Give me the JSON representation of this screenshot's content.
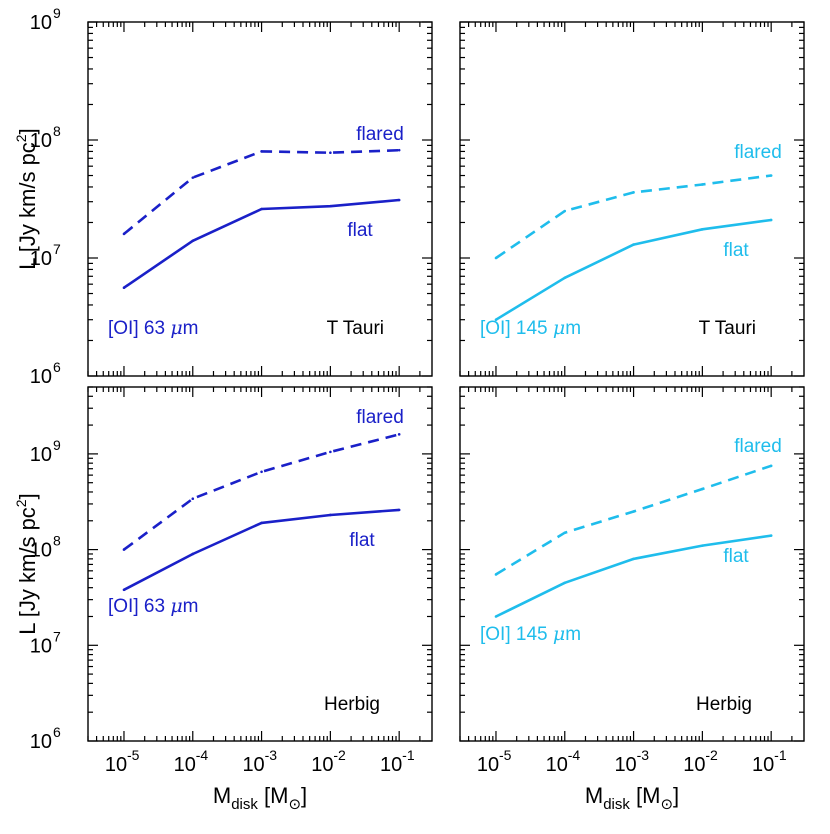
{
  "chart_data": [
    {
      "type": "line",
      "position": "top-left",
      "line": "[OI] 63 μm",
      "object": "T Tauri",
      "color": "#1a20c8",
      "xscale": "log",
      "yscale": "log",
      "x": [
        1e-05,
        0.0001,
        0.001,
        0.01,
        0.1
      ],
      "xlim": [
        3e-06,
        0.3
      ],
      "ylim": [
        1000000.0,
        1000000000.0
      ],
      "xlabel": "",
      "ylabel": "L [Jy km/s pc2]",
      "series": [
        {
          "name": "flared",
          "style": "dashed",
          "values": [
            16000000.0,
            48000000.0,
            80000000.0,
            78000000.0,
            82000000.0
          ]
        },
        {
          "name": "flat",
          "style": "solid",
          "values": [
            5600000.0,
            14000000.0,
            26000000.0,
            27500000.0,
            31000000.0
          ]
        }
      ]
    },
    {
      "type": "line",
      "position": "top-right",
      "line": "[OI] 145 μm",
      "object": "T Tauri",
      "color": "#1fbdec",
      "xscale": "log",
      "yscale": "log",
      "x": [
        1e-05,
        0.0001,
        0.001,
        0.01,
        0.1
      ],
      "xlim": [
        3e-06,
        0.3
      ],
      "ylim": [
        1000000.0,
        1000000000.0
      ],
      "xlabel": "",
      "ylabel": "",
      "series": [
        {
          "name": "flared",
          "style": "dashed",
          "values": [
            10000000.0,
            25000000.0,
            36000000.0,
            42000000.0,
            50000000.0
          ]
        },
        {
          "name": "flat",
          "style": "solid",
          "values": [
            3000000.0,
            6800000.0,
            13000000.0,
            17500000.0,
            21000000.0
          ]
        }
      ]
    },
    {
      "type": "line",
      "position": "bottom-left",
      "line": "[OI] 63 μm",
      "object": "Herbig",
      "color": "#1a20c8",
      "xscale": "log",
      "yscale": "log",
      "x": [
        1e-05,
        0.0001,
        0.001,
        0.01,
        0.1
      ],
      "xlim": [
        3e-06,
        0.3
      ],
      "ylim": [
        1000000.0,
        5000000000.0
      ],
      "xlabel": "Mdisk [M⊙]",
      "ylabel": "L [Jy km/s pc2]",
      "series": [
        {
          "name": "flared",
          "style": "dashed",
          "values": [
            100000000.0,
            340000000.0,
            650000000.0,
            1050000000.0,
            1600000000.0
          ]
        },
        {
          "name": "flat",
          "style": "solid",
          "values": [
            38000000.0,
            90000000.0,
            190000000.0,
            230000000.0,
            260000000.0
          ]
        }
      ]
    },
    {
      "type": "line",
      "position": "bottom-right",
      "line": "[OI] 145 μm",
      "object": "Herbig",
      "color": "#1fbdec",
      "xscale": "log",
      "yscale": "log",
      "x": [
        1e-05,
        0.0001,
        0.001,
        0.01,
        0.1
      ],
      "xlim": [
        3e-06,
        0.3
      ],
      "ylim": [
        1000000.0,
        5000000000.0
      ],
      "xlabel": "Mdisk [M⊙]",
      "ylabel": "",
      "series": [
        {
          "name": "flared",
          "style": "dashed",
          "values": [
            55000000.0,
            150000000.0,
            250000000.0,
            430000000.0,
            750000000.0
          ]
        },
        {
          "name": "flat",
          "style": "solid",
          "values": [
            20000000.0,
            45000000.0,
            80000000.0,
            110000000.0,
            140000000.0
          ]
        }
      ]
    }
  ],
  "labels": {
    "flared": "flared",
    "flat": "flat",
    "line_63_prefix": "[OI] 63 ",
    "line_145_prefix": "[OI] 145 ",
    "mu": "μ",
    "micron_suffix": "m",
    "t_tauri": "T Tauri",
    "herbig": "Herbig",
    "ylabel_main": "L [Jy km/s pc",
    "ylabel_sup": "2",
    "ylabel_close": "]",
    "xlabel_main": "M",
    "xlabel_sub": "disk",
    "xlabel_unit": " [M",
    "xlabel_sun": "⊙",
    "xlabel_close": "]",
    "tick_base": "10",
    "xtick_exps": [
      "-5",
      "-4",
      "-3",
      "-2",
      "-1"
    ],
    "ytick_exps_top": [
      "6",
      "7",
      "8",
      "9"
    ],
    "ytick_exps_bottom": [
      "6",
      "7",
      "8",
      "9"
    ]
  }
}
